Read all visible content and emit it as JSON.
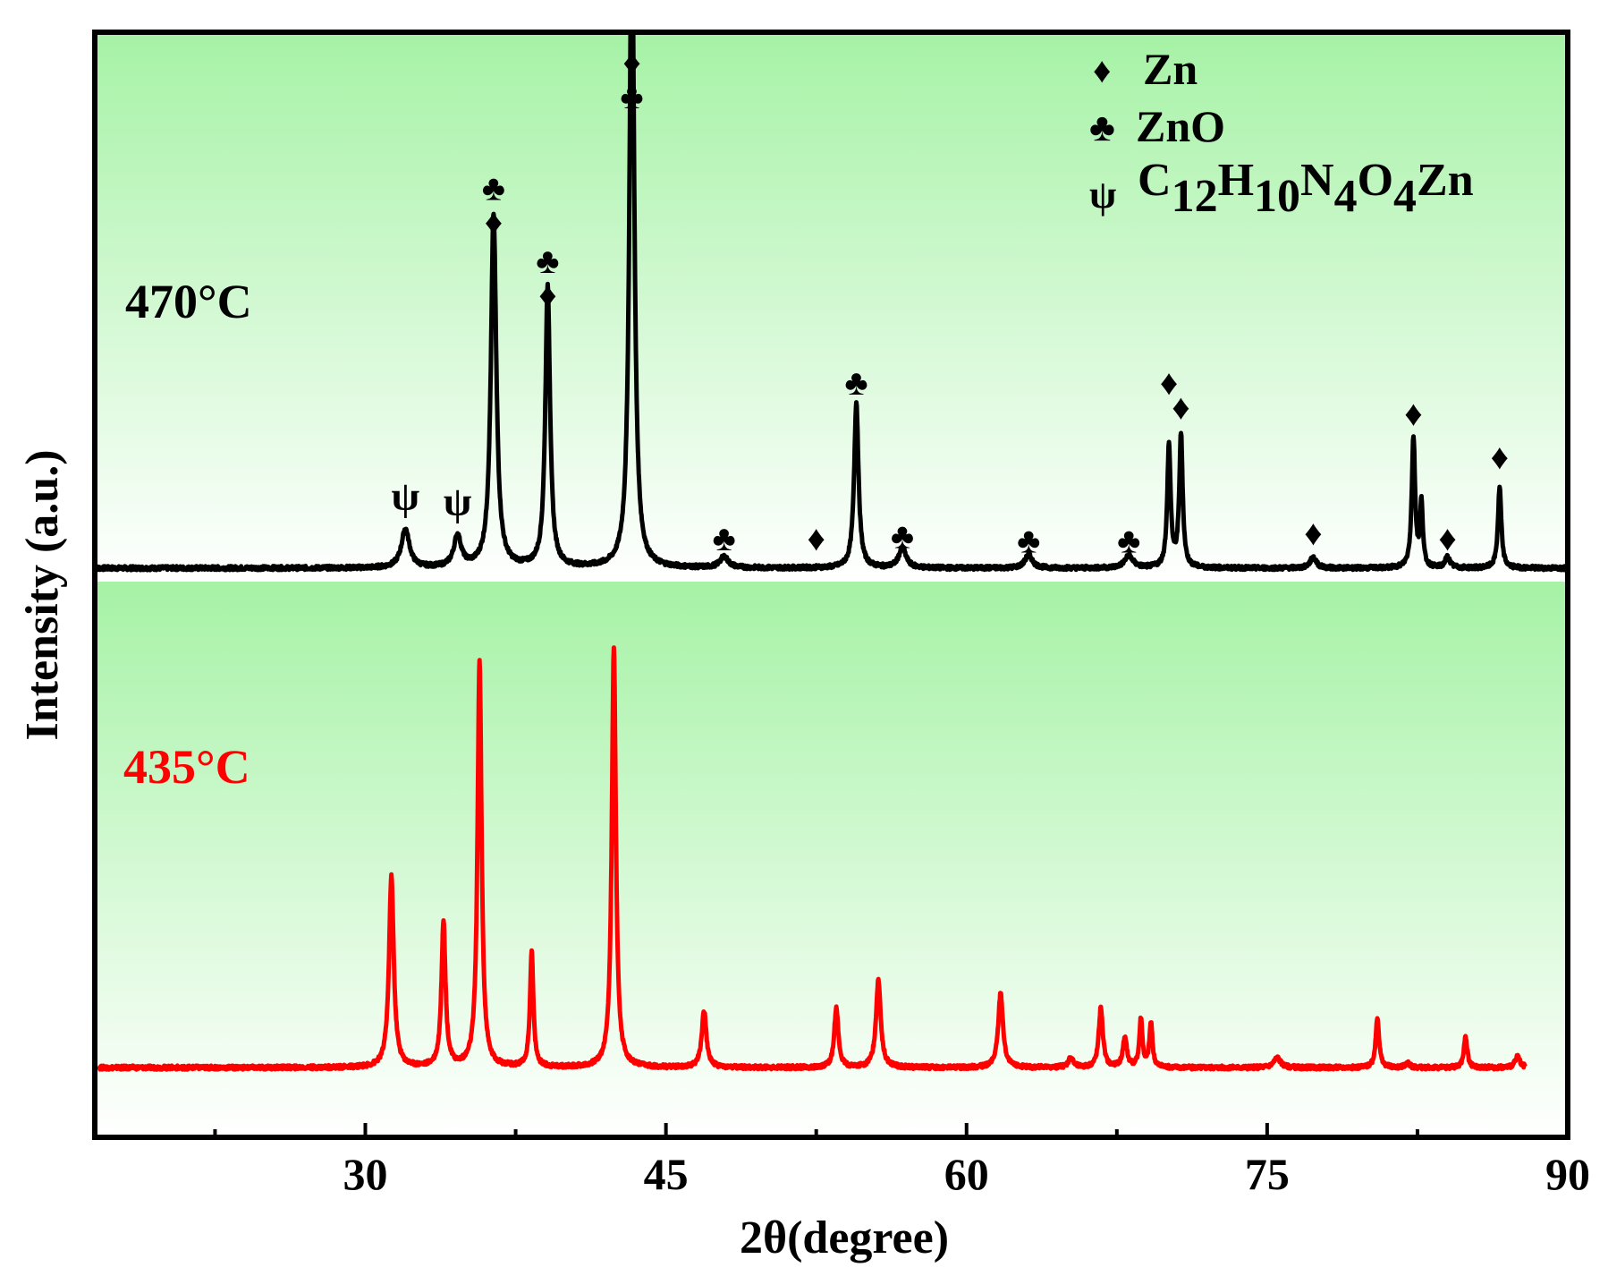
{
  "chart_data": {
    "type": "line",
    "xlabel": "2θ(degree)",
    "ylabel": "Intensity (a.u.)",
    "xlim": [
      16.5,
      90
    ],
    "ylim": [
      0,
      100
    ],
    "x_ticks_major": [
      30,
      45,
      60,
      75,
      90
    ],
    "x_ticks_minor": [
      22.5,
      37.5,
      52.5,
      67.5,
      82.5
    ],
    "grid": false,
    "background": {
      "top": "#a6f2a6",
      "bottom": "#ffffff"
    },
    "legend": {
      "placement": "top-right",
      "entries": [
        {
          "symbol": "♦",
          "symbol_name": "diamond-icon",
          "label": "Zn"
        },
        {
          "symbol": "♣",
          "symbol_name": "club-icon",
          "label": "ZnO"
        },
        {
          "symbol": "ψ",
          "symbol_name": "psi-icon",
          "label_parts": [
            "C",
            "12",
            "H",
            "10",
            "N",
            "4",
            "O",
            "4",
            "Zn"
          ]
        }
      ]
    },
    "series": [
      {
        "name": "470°C",
        "color": "#000000",
        "baseline": 51.5,
        "noise": 0.18,
        "peaks": [
          {
            "x": 32.0,
            "h": 3.5,
            "w": 0.24
          },
          {
            "x": 34.6,
            "h": 2.8,
            "w": 0.22
          },
          {
            "x": 36.4,
            "h": 32.0,
            "w": 0.16
          },
          {
            "x": 39.1,
            "h": 25.5,
            "w": 0.14
          },
          {
            "x": 43.3,
            "h": 60.0,
            "w": 0.14
          },
          {
            "x": 47.9,
            "h": 1.0,
            "w": 0.25
          },
          {
            "x": 54.5,
            "h": 15.0,
            "w": 0.13
          },
          {
            "x": 56.8,
            "h": 1.8,
            "w": 0.22
          },
          {
            "x": 63.1,
            "h": 1.2,
            "w": 0.22
          },
          {
            "x": 68.1,
            "h": 1.1,
            "w": 0.25
          },
          {
            "x": 70.1,
            "h": 11.0,
            "w": 0.1
          },
          {
            "x": 70.7,
            "h": 12.0,
            "w": 0.1
          },
          {
            "x": 77.3,
            "h": 1.0,
            "w": 0.18
          },
          {
            "x": 82.3,
            "h": 11.8,
            "w": 0.1
          },
          {
            "x": 82.7,
            "h": 5.8,
            "w": 0.08
          },
          {
            "x": 84.0,
            "h": 1.0,
            "w": 0.14
          },
          {
            "x": 86.6,
            "h": 7.3,
            "w": 0.1
          }
        ]
      },
      {
        "name": "435°C",
        "color": "#ff0000",
        "baseline": 6.3,
        "noise": 0.18,
        "x_range": [
          16.7,
          87.9
        ],
        "peaks": [
          {
            "x": 31.3,
            "h": 17.3,
            "w": 0.14
          },
          {
            "x": 33.9,
            "h": 13.2,
            "w": 0.12
          },
          {
            "x": 35.7,
            "h": 36.7,
            "w": 0.12
          },
          {
            "x": 38.3,
            "h": 10.5,
            "w": 0.1
          },
          {
            "x": 42.4,
            "h": 38.0,
            "w": 0.12
          },
          {
            "x": 46.9,
            "h": 5.1,
            "w": 0.14
          },
          {
            "x": 53.5,
            "h": 5.5,
            "w": 0.12
          },
          {
            "x": 55.6,
            "h": 8.0,
            "w": 0.14
          },
          {
            "x": 61.7,
            "h": 6.8,
            "w": 0.14
          },
          {
            "x": 65.2,
            "h": 0.9,
            "w": 0.15
          },
          {
            "x": 66.7,
            "h": 5.4,
            "w": 0.12
          },
          {
            "x": 67.9,
            "h": 2.7,
            "w": 0.12
          },
          {
            "x": 68.7,
            "h": 4.4,
            "w": 0.09
          },
          {
            "x": 69.2,
            "h": 4.0,
            "w": 0.09
          },
          {
            "x": 75.5,
            "h": 0.9,
            "w": 0.2
          },
          {
            "x": 80.5,
            "h": 4.6,
            "w": 0.1
          },
          {
            "x": 82.0,
            "h": 0.4,
            "w": 0.14
          },
          {
            "x": 84.9,
            "h": 2.8,
            "w": 0.1
          },
          {
            "x": 87.5,
            "h": 1.0,
            "w": 0.15
          }
        ]
      }
    ],
    "peak_markers": [
      {
        "x": 32.0,
        "y": 56.8,
        "symbols": [
          "ψ"
        ]
      },
      {
        "x": 34.6,
        "y": 56.3,
        "symbols": [
          "ψ"
        ]
      },
      {
        "x": 36.4,
        "y": 84.8,
        "symbols": [
          "♣",
          "♦"
        ]
      },
      {
        "x": 39.1,
        "y": 78.2,
        "symbols": [
          "♣",
          "♦"
        ]
      },
      {
        "x": 43.3,
        "y": 96.2,
        "symbols": [
          "♦",
          "♣"
        ]
      },
      {
        "x": 47.9,
        "y": 53.1,
        "symbols": [
          "♣"
        ]
      },
      {
        "x": 52.5,
        "y": 53.1,
        "symbols": [
          "♦"
        ]
      },
      {
        "x": 54.5,
        "y": 67.2,
        "symbols": [
          "♣"
        ]
      },
      {
        "x": 56.8,
        "y": 53.3,
        "symbols": [
          "♣"
        ]
      },
      {
        "x": 63.1,
        "y": 52.9,
        "symbols": [
          "♣"
        ]
      },
      {
        "x": 68.1,
        "y": 52.9,
        "symbols": [
          "♣"
        ]
      },
      {
        "x": 70.1,
        "y": 67.2,
        "symbols": [
          "♦"
        ]
      },
      {
        "x": 70.7,
        "y": 65.0,
        "symbols": [
          "♦"
        ]
      },
      {
        "x": 77.3,
        "y": 53.6,
        "symbols": [
          "♦"
        ]
      },
      {
        "x": 82.3,
        "y": 64.4,
        "symbols": [
          "♦"
        ]
      },
      {
        "x": 84.0,
        "y": 53.1,
        "symbols": [
          "♦"
        ]
      },
      {
        "x": 86.6,
        "y": 60.5,
        "symbols": [
          "♦"
        ]
      }
    ]
  }
}
